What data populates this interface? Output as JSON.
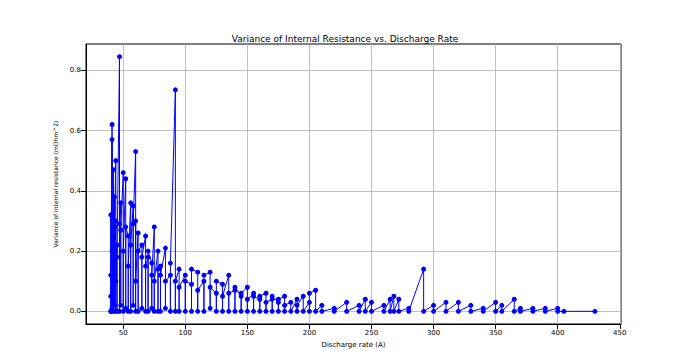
{
  "chart_data": {
    "type": "line",
    "marker": "o",
    "line_style": "solid",
    "color": "#0000ff",
    "grid": true,
    "title": "Variance of Internal Resistance vs. Discharge Rate",
    "xlabel": "Discharge rate (A)",
    "ylabel": "Variance of internal resistance (mOhm^2)",
    "xlim": [
      20,
      451
    ],
    "xticks": [
      50,
      100,
      150,
      200,
      250,
      300,
      350,
      400,
      450
    ],
    "ylim": [
      -0.042,
      0.887
    ],
    "yticks": [
      {
        "value": 0,
        "label": "0.0"
      },
      0.2,
      0.4,
      0.6,
      0.8
    ],
    "x": [
      40,
      40,
      40,
      40,
      40,
      41,
      41,
      41,
      41,
      41,
      42,
      42,
      42,
      42,
      43,
      43,
      43,
      44,
      44,
      44,
      44,
      45,
      45,
      45,
      47,
      47,
      47,
      48,
      48,
      48,
      50,
      50,
      50,
      52,
      52,
      52,
      54,
      54,
      54,
      56,
      56,
      56,
      58,
      58,
      58,
      60,
      60,
      60,
      60,
      62,
      62,
      62,
      65,
      65,
      65,
      68,
      68,
      68,
      70,
      70,
      70,
      73,
      73,
      73,
      75,
      75,
      75,
      78,
      78,
      78,
      80,
      80,
      80,
      84,
      84,
      84,
      88,
      88,
      88,
      92,
      92,
      92,
      95,
      95,
      95,
      100,
      100,
      100,
      105,
      105,
      105,
      110,
      110,
      110,
      115,
      115,
      115,
      120,
      120,
      120,
      125,
      125,
      125,
      130,
      130,
      130,
      135,
      135,
      135,
      140,
      140,
      140,
      145,
      145,
      145,
      150,
      150,
      150,
      155,
      155,
      155,
      160,
      160,
      160,
      165,
      165,
      165,
      170,
      170,
      170,
      175,
      175,
      175,
      180,
      180,
      180,
      185,
      185,
      190,
      190,
      190,
      195,
      195,
      200,
      200,
      200,
      205,
      205,
      210,
      210,
      220,
      220,
      230,
      230,
      240,
      240,
      245,
      245,
      250,
      250,
      260,
      260,
      265,
      265,
      268,
      268,
      272,
      272,
      280,
      280,
      292,
      292,
      300,
      300,
      310,
      310,
      320,
      320,
      330,
      330,
      340,
      340,
      350,
      350,
      355,
      355,
      365,
      365,
      370,
      370,
      380,
      380,
      390,
      390,
      400,
      400,
      405,
      430
    ],
    "y": [
      0.0,
      0.05,
      0.32,
      0.0,
      0.12,
      0.62,
      0.0,
      0.57,
      0.2,
      0.01,
      0.25,
      0.0,
      0.47,
      0.08,
      0.38,
      0.02,
      0.28,
      0.5,
      0.0,
      0.3,
      0.1,
      0.22,
      0.0,
      0.18,
      0.845,
      0.0,
      0.29,
      0.36,
      0.02,
      0.27,
      0.46,
      0.0,
      0.2,
      0.44,
      0.01,
      0.28,
      0.25,
      0.0,
      0.15,
      0.36,
      0.0,
      0.22,
      0.35,
      0.02,
      0.29,
      0.53,
      0.0,
      0.3,
      0.1,
      0.26,
      0.0,
      0.2,
      0.22,
      0.01,
      0.18,
      0.25,
      0.0,
      0.15,
      0.18,
      0.0,
      0.2,
      0.16,
      0.01,
      0.12,
      0.28,
      0.0,
      0.1,
      0.2,
      0.0,
      0.14,
      0.15,
      0.0,
      0.12,
      0.21,
      0.01,
      0.1,
      0.12,
      0.0,
      0.16,
      0.735,
      0.0,
      0.1,
      0.14,
      0.0,
      0.08,
      0.12,
      0.0,
      0.1,
      0.09,
      0.0,
      0.14,
      0.13,
      0.0,
      0.07,
      0.1,
      0.0,
      0.12,
      0.13,
      0.01,
      0.08,
      0.06,
      0.0,
      0.1,
      0.09,
      0.0,
      0.05,
      0.12,
      0.0,
      0.06,
      0.07,
      0.0,
      0.08,
      0.05,
      0.0,
      0.06,
      0.08,
      0.0,
      0.04,
      0.06,
      0.0,
      0.05,
      0.04,
      0.0,
      0.05,
      0.06,
      0.0,
      0.03,
      0.04,
      0.0,
      0.05,
      0.03,
      0.0,
      0.04,
      0.05,
      0.0,
      0.02,
      0.03,
      0.0,
      0.04,
      0.0,
      0.02,
      0.05,
      0.0,
      0.03,
      0.0,
      0.06,
      0.07,
      0.0,
      0.02,
      0.0,
      0.01,
      0.0,
      0.03,
      0.0,
      0.02,
      0.0,
      0.04,
      0.0,
      0.03,
      0.0,
      0.02,
      0.0,
      0.04,
      0.0,
      0.05,
      0.0,
      0.04,
      0.0,
      0.01,
      0.0,
      0.14,
      0.0,
      0.02,
      0.0,
      0.03,
      0.0,
      0.03,
      0.0,
      0.02,
      0.0,
      0.01,
      0.0,
      0.03,
      0.0,
      0.02,
      0.0,
      0.04,
      0.0,
      0.01,
      0.0,
      0.01,
      0.0,
      0.01,
      0.0,
      0.01,
      0.0,
      0.0,
      0.0
    ]
  }
}
